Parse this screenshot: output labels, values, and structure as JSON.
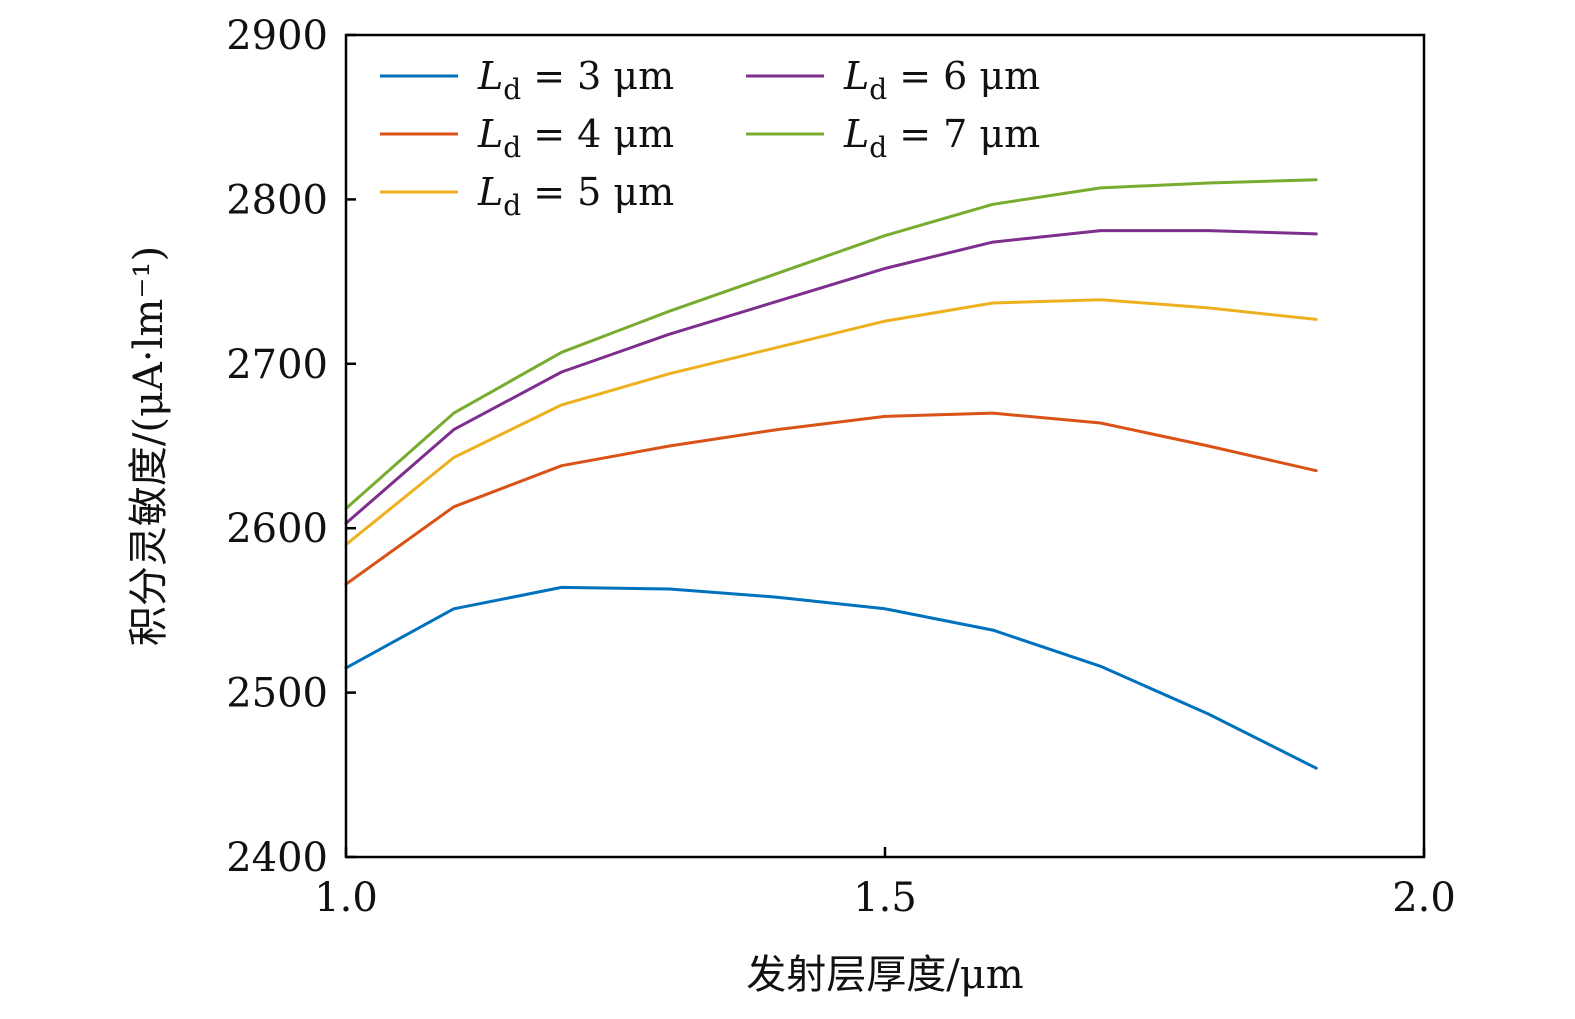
{
  "chart_data": {
    "type": "line",
    "xlabel": "发射层厚度/μm",
    "ylabel": "积分灵敏度/(μA·lm⁻¹)",
    "xlim": [
      1.0,
      2.0
    ],
    "ylim": [
      2400,
      2900
    ],
    "x_ticks": [
      "1.0",
      "1.5",
      "2.0"
    ],
    "y_ticks": [
      "2400",
      "2500",
      "2600",
      "2700",
      "2800",
      "2900"
    ],
    "x_tick_values": [
      1.0,
      1.5,
      2.0
    ],
    "y_tick_values": [
      2400,
      2500,
      2600,
      2700,
      2800,
      2900
    ],
    "x": [
      1.0,
      1.1,
      1.2,
      1.3,
      1.4,
      1.5,
      1.6,
      1.7,
      1.8,
      1.9
    ],
    "grid": false,
    "legend_position": "top-left",
    "series": [
      {
        "name": "L_d = 3 μm",
        "label_main": "L",
        "label_sub": "d",
        "label_rest": " = 3 μm",
        "color": "#0072BD",
        "values": [
          2515,
          2551,
          2564,
          2563,
          2558,
          2551,
          2538,
          2516,
          2487,
          2454
        ]
      },
      {
        "name": "L_d = 4 μm",
        "label_main": "L",
        "label_sub": "d",
        "label_rest": " = 4 μm",
        "color": "#D95319",
        "values": [
          2566,
          2613,
          2638,
          2650,
          2660,
          2668,
          2670,
          2664,
          2650,
          2635
        ]
      },
      {
        "name": "L_d = 5 μm",
        "label_main": "L",
        "label_sub": "d",
        "label_rest": " = 5 μm",
        "color": "#EDB120",
        "values": [
          2590,
          2643,
          2675,
          2694,
          2710,
          2726,
          2737,
          2739,
          2734,
          2727
        ]
      },
      {
        "name": "L_d = 6 μm",
        "label_main": "L",
        "label_sub": "d",
        "label_rest": " = 6 μm",
        "color": "#7E2F8E",
        "values": [
          2603,
          2660,
          2695,
          2718,
          2738,
          2758,
          2774,
          2781,
          2781,
          2779
        ]
      },
      {
        "name": "L_d = 7 μm",
        "label_main": "L",
        "label_sub": "d",
        "label_rest": " = 7 μm",
        "color": "#77AC30",
        "values": [
          2612,
          2670,
          2707,
          2732,
          2755,
          2778,
          2797,
          2807,
          2810,
          2812
        ]
      }
    ]
  }
}
